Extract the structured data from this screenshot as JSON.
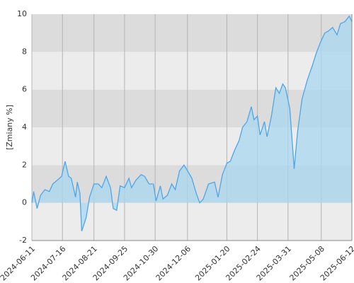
{
  "chart_data": {
    "type": "area",
    "y_label": "[Zmiany %]",
    "x": [
      "2024-06-11",
      "2024-06-13",
      "2024-06-17",
      "2024-06-21",
      "2024-06-26",
      "2024-07-01",
      "2024-07-05",
      "2024-07-10",
      "2024-07-15",
      "2024-07-19",
      "2024-07-23",
      "2024-07-26",
      "2024-07-31",
      "2024-08-02",
      "2024-08-05",
      "2024-08-07",
      "2024-08-12",
      "2024-08-16",
      "2024-08-21",
      "2024-08-26",
      "2024-08-30",
      "2024-09-04",
      "2024-09-09",
      "2024-09-12",
      "2024-09-16",
      "2024-09-20",
      "2024-09-25",
      "2024-09-30",
      "2024-10-03",
      "2024-10-08",
      "2024-10-14",
      "2024-10-18",
      "2024-10-23",
      "2024-10-28",
      "2024-10-31",
      "2024-11-05",
      "2024-11-08",
      "2024-11-13",
      "2024-11-18",
      "2024-11-22",
      "2024-11-27",
      "2024-12-02",
      "2024-12-06",
      "2024-12-11",
      "2024-12-16",
      "2024-12-20",
      "2024-12-24",
      "2024-12-30",
      "2025-01-06",
      "2025-01-10",
      "2025-01-15",
      "2025-01-20",
      "2025-01-24",
      "2025-01-29",
      "2025-02-03",
      "2025-02-07",
      "2025-02-12",
      "2025-02-17",
      "2025-02-20",
      "2025-02-24",
      "2025-02-27",
      "2025-03-04",
      "2025-03-07",
      "2025-03-12",
      "2025-03-17",
      "2025-03-21",
      "2025-03-25",
      "2025-03-28",
      "2025-04-02",
      "2025-04-07",
      "2025-04-11",
      "2025-04-16",
      "2025-04-22",
      "2025-04-28",
      "2025-05-02",
      "2025-05-07",
      "2025-05-12",
      "2025-05-16",
      "2025-05-21",
      "2025-05-26",
      "2025-05-30",
      "2025-06-04",
      "2025-06-09",
      "2025-06-12"
    ],
    "values": [
      0.0,
      0.6,
      -0.3,
      0.4,
      0.7,
      0.6,
      1.0,
      1.2,
      1.4,
      2.2,
      1.4,
      1.3,
      0.3,
      1.1,
      0.5,
      -1.5,
      -0.8,
      0.3,
      1.0,
      1.0,
      0.8,
      1.4,
      0.8,
      -0.3,
      -0.4,
      0.9,
      0.8,
      1.3,
      0.8,
      1.2,
      1.5,
      1.4,
      1.0,
      1.0,
      0.1,
      0.9,
      0.2,
      0.4,
      1.0,
      0.7,
      1.7,
      2.0,
      1.7,
      1.3,
      0.5,
      0.0,
      0.2,
      1.0,
      1.1,
      0.3,
      1.5,
      2.1,
      2.2,
      2.8,
      3.3,
      4.0,
      4.3,
      5.1,
      4.4,
      4.6,
      3.6,
      4.3,
      3.5,
      4.6,
      6.1,
      5.8,
      6.3,
      6.1,
      5.0,
      1.8,
      3.8,
      5.5,
      6.5,
      7.3,
      7.9,
      8.5,
      9.0,
      9.1,
      9.3,
      8.9,
      9.5,
      9.6,
      9.9,
      9.6
    ],
    "color": "#4da6e8",
    "fill_color": "#a8d8ef",
    "xlim": [
      "2024-06-11",
      "2025-06-12"
    ],
    "xticks": [
      "2024-06-11",
      "2024-07-16",
      "2024-08-21",
      "2024-09-25",
      "2024-10-30",
      "2024-12-06",
      "2025-01-20",
      "2025-02-24",
      "2025-03-31",
      "2025-05-08",
      "2025-06-12"
    ],
    "ylim": [
      -2,
      10
    ],
    "yticks": [
      -2,
      0,
      2,
      4,
      6,
      8,
      10
    ],
    "grid": true
  }
}
